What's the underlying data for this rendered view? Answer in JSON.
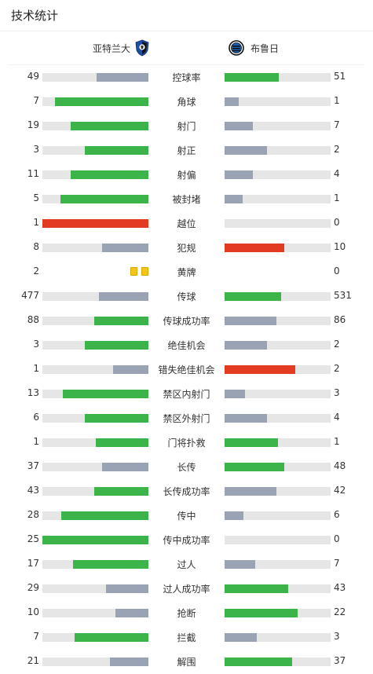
{
  "header": {
    "title": "技术统计"
  },
  "teams": {
    "home": {
      "name": "亚特兰大",
      "crest_icon": "atalanta-crest-icon"
    },
    "away": {
      "name": "布鲁日",
      "crest_icon": "club-brugge-crest-icon"
    }
  },
  "colors": {
    "green": "#3cb44a",
    "gray": "#9aa3b3",
    "red": "#e23b22",
    "track": "#e6e6e6",
    "yellow_card": "#f5c518"
  },
  "stats": [
    {
      "label": "控球率",
      "home": "49",
      "away": "51",
      "home_ratio": 0.49,
      "away_ratio": 0.51,
      "home_color": "gray",
      "away_color": "green"
    },
    {
      "label": "角球",
      "home": "7",
      "away": "1",
      "home_ratio": 0.88,
      "away_ratio": 0.13,
      "home_color": "green",
      "away_color": "gray"
    },
    {
      "label": "射门",
      "home": "19",
      "away": "7",
      "home_ratio": 0.73,
      "away_ratio": 0.27,
      "home_color": "green",
      "away_color": "gray"
    },
    {
      "label": "射正",
      "home": "3",
      "away": "2",
      "home_ratio": 0.6,
      "away_ratio": 0.4,
      "home_color": "green",
      "away_color": "gray"
    },
    {
      "label": "射偏",
      "home": "11",
      "away": "4",
      "home_ratio": 0.73,
      "away_ratio": 0.27,
      "home_color": "green",
      "away_color": "gray"
    },
    {
      "label": "被封堵",
      "home": "5",
      "away": "1",
      "home_ratio": 0.83,
      "away_ratio": 0.17,
      "home_color": "green",
      "away_color": "gray"
    },
    {
      "label": "越位",
      "home": "1",
      "away": "0",
      "home_ratio": 1.0,
      "away_ratio": 0.0,
      "home_color": "red",
      "away_color": "gray"
    },
    {
      "label": "犯规",
      "home": "8",
      "away": "10",
      "home_ratio": 0.44,
      "away_ratio": 0.56,
      "home_color": "gray",
      "away_color": "red"
    },
    {
      "label": "黄牌",
      "home": "2",
      "away": "0",
      "home_cards": 2,
      "away_cards": 0
    },
    {
      "label": "传球",
      "home": "477",
      "away": "531",
      "home_ratio": 0.47,
      "away_ratio": 0.53,
      "home_color": "gray",
      "away_color": "green"
    },
    {
      "label": "传球成功率",
      "home": "88",
      "away": "86",
      "home_ratio": 0.51,
      "away_ratio": 0.49,
      "home_color": "green",
      "away_color": "gray"
    },
    {
      "label": "绝佳机会",
      "home": "3",
      "away": "2",
      "home_ratio": 0.6,
      "away_ratio": 0.4,
      "home_color": "green",
      "away_color": "gray"
    },
    {
      "label": "错失绝佳机会",
      "home": "1",
      "away": "2",
      "home_ratio": 0.33,
      "away_ratio": 0.67,
      "home_color": "gray",
      "away_color": "red"
    },
    {
      "label": "禁区内射门",
      "home": "13",
      "away": "3",
      "home_ratio": 0.81,
      "away_ratio": 0.19,
      "home_color": "green",
      "away_color": "gray"
    },
    {
      "label": "禁区外射门",
      "home": "6",
      "away": "4",
      "home_ratio": 0.6,
      "away_ratio": 0.4,
      "home_color": "green",
      "away_color": "gray"
    },
    {
      "label": "门将扑救",
      "home": "1",
      "away": "1",
      "home_ratio": 0.5,
      "away_ratio": 0.5,
      "home_color": "green",
      "away_color": "green"
    },
    {
      "label": "长传",
      "home": "37",
      "away": "48",
      "home_ratio": 0.44,
      "away_ratio": 0.56,
      "home_color": "gray",
      "away_color": "green"
    },
    {
      "label": "长传成功率",
      "home": "43",
      "away": "42",
      "home_ratio": 0.51,
      "away_ratio": 0.49,
      "home_color": "green",
      "away_color": "gray"
    },
    {
      "label": "传中",
      "home": "28",
      "away": "6",
      "home_ratio": 0.82,
      "away_ratio": 0.18,
      "home_color": "green",
      "away_color": "gray"
    },
    {
      "label": "传中成功率",
      "home": "25",
      "away": "0",
      "home_ratio": 1.0,
      "away_ratio": 0.0,
      "home_color": "green",
      "away_color": "gray"
    },
    {
      "label": "过人",
      "home": "17",
      "away": "7",
      "home_ratio": 0.71,
      "away_ratio": 0.29,
      "home_color": "green",
      "away_color": "gray"
    },
    {
      "label": "过人成功率",
      "home": "29",
      "away": "43",
      "home_ratio": 0.4,
      "away_ratio": 0.6,
      "home_color": "gray",
      "away_color": "green"
    },
    {
      "label": "抢断",
      "home": "10",
      "away": "22",
      "home_ratio": 0.31,
      "away_ratio": 0.69,
      "home_color": "gray",
      "away_color": "green"
    },
    {
      "label": "拦截",
      "home": "7",
      "away": "3",
      "home_ratio": 0.7,
      "away_ratio": 0.3,
      "home_color": "green",
      "away_color": "gray"
    },
    {
      "label": "解围",
      "home": "21",
      "away": "37",
      "home_ratio": 0.36,
      "away_ratio": 0.64,
      "home_color": "gray",
      "away_color": "green"
    }
  ]
}
